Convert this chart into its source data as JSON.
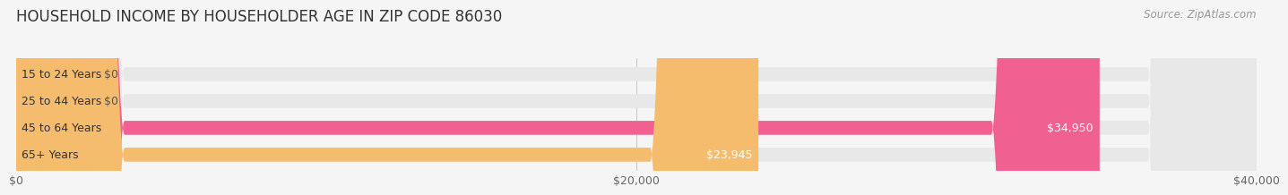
{
  "title": "HOUSEHOLD INCOME BY HOUSEHOLDER AGE IN ZIP CODE 86030",
  "source": "Source: ZipAtlas.com",
  "categories": [
    "15 to 24 Years",
    "25 to 44 Years",
    "45 to 64 Years",
    "65+ Years"
  ],
  "values": [
    0,
    0,
    34950,
    23945
  ],
  "bar_colors": [
    "#6ecfcf",
    "#b3aee0",
    "#f06090",
    "#f5bc6e"
  ],
  "xlim": [
    0,
    40000
  ],
  "xticks": [
    0,
    20000,
    40000
  ],
  "xtick_labels": [
    "$0",
    "$20,000",
    "$40,000"
  ],
  "background_color": "#f5f5f5",
  "bar_bg_color": "#e8e8e8",
  "title_fontsize": 12,
  "label_fontsize": 9,
  "value_fontsize": 9,
  "source_fontsize": 8.5,
  "bar_height": 0.52
}
